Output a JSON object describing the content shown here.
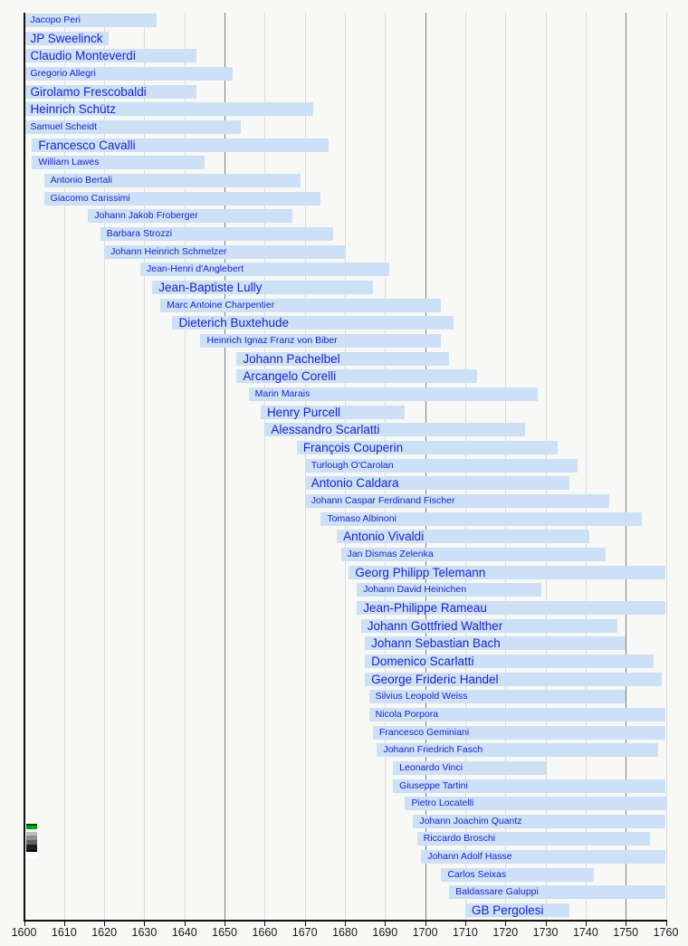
{
  "page": {
    "background": "#f8f8f6"
  },
  "chart_data": {
    "type": "bar",
    "variant": "horizontal-timeline-of-lifespans",
    "title": "",
    "subtitle": "",
    "legend": [],
    "grid": "on",
    "x_axis": {
      "min": 1600,
      "max": 1760,
      "tick_step": 10,
      "tick_labels": [
        "1600",
        "1610",
        "1620",
        "1630",
        "1640",
        "1650",
        "1660",
        "1670",
        "1680",
        "1690",
        "1700",
        "1710",
        "1720",
        "1730",
        "1740",
        "1750",
        "1760"
      ],
      "major_gridline_every": 50
    },
    "colors": {
      "bar_fill": "#cce0f6",
      "bar_label": "#2121cd",
      "grid_minor": "#dcdcdc",
      "grid_major": "#7d7d7d",
      "axis": "#101010",
      "background": "#f8f8f6"
    },
    "composers": [
      {
        "name": "Jacopo Peri",
        "from": 1600,
        "to": 1633,
        "label_size": "small"
      },
      {
        "name": "JP Sweelinck",
        "from": 1600,
        "to": 1621,
        "label_size": "large"
      },
      {
        "name": "Claudio Monteverdi",
        "from": 1600,
        "to": 1643,
        "label_size": "large"
      },
      {
        "name": "Gregorio Allegri",
        "from": 1600,
        "to": 1652,
        "label_size": "small"
      },
      {
        "name": "Girolamo Frescobaldi",
        "from": 1600,
        "to": 1643,
        "label_size": "large"
      },
      {
        "name": "Heinrich Schütz",
        "from": 1600,
        "to": 1672,
        "label_size": "large"
      },
      {
        "name": "Samuel Scheidt",
        "from": 1600,
        "to": 1654,
        "label_size": "small"
      },
      {
        "name": "Francesco Cavalli",
        "from": 1602,
        "to": 1676,
        "label_size": "large"
      },
      {
        "name": "William Lawes",
        "from": 1602,
        "to": 1645,
        "label_size": "small"
      },
      {
        "name": "Antonio Bertali",
        "from": 1605,
        "to": 1669,
        "label_size": "small"
      },
      {
        "name": "Giacomo Carissimi",
        "from": 1605,
        "to": 1674,
        "label_size": "small"
      },
      {
        "name": "Johann Jakob Froberger",
        "from": 1616,
        "to": 1667,
        "label_size": "small"
      },
      {
        "name": "Barbara Strozzi",
        "from": 1619,
        "to": 1677,
        "label_size": "small"
      },
      {
        "name": "Johann Heinrich Schmelzer",
        "from": 1620,
        "to": 1680,
        "label_size": "small"
      },
      {
        "name": "Jean-Henri d'Anglebert",
        "from": 1629,
        "to": 1691,
        "label_size": "small"
      },
      {
        "name": "Jean-Baptiste Lully",
        "from": 1632,
        "to": 1687,
        "label_size": "large"
      },
      {
        "name": "Marc Antoine Charpentier",
        "from": 1634,
        "to": 1704,
        "label_size": "small"
      },
      {
        "name": "Dieterich Buxtehude",
        "from": 1637,
        "to": 1707,
        "label_size": "large"
      },
      {
        "name": "Heinrich Ignaz Franz von Biber",
        "from": 1644,
        "to": 1704,
        "label_size": "small"
      },
      {
        "name": "Johann Pachelbel",
        "from": 1653,
        "to": 1706,
        "label_size": "large"
      },
      {
        "name": "Arcangelo Corelli",
        "from": 1653,
        "to": 1713,
        "label_size": "large"
      },
      {
        "name": "Marin Marais",
        "from": 1656,
        "to": 1728,
        "label_size": "small"
      },
      {
        "name": "Henry Purcell",
        "from": 1659,
        "to": 1695,
        "label_size": "large"
      },
      {
        "name": "Alessandro Scarlatti",
        "from": 1660,
        "to": 1725,
        "label_size": "large"
      },
      {
        "name": "François Couperin",
        "from": 1668,
        "to": 1733,
        "label_size": "large"
      },
      {
        "name": "Turlough O'Carolan",
        "from": 1670,
        "to": 1738,
        "label_size": "small"
      },
      {
        "name": "Antonio Caldara",
        "from": 1670,
        "to": 1736,
        "label_size": "large"
      },
      {
        "name": "Johann Caspar Ferdinand Fischer",
        "from": 1670,
        "to": 1746,
        "label_size": "small"
      },
      {
        "name": "Tomaso Albinoni",
        "from": 1674,
        "to": 1754,
        "label_size": "small"
      },
      {
        "name": "Antonio Vivaldi",
        "from": 1678,
        "to": 1741,
        "label_size": "large"
      },
      {
        "name": "Jan Dismas Zelenka",
        "from": 1679,
        "to": 1745,
        "label_size": "small"
      },
      {
        "name": "Georg Philipp Telemann",
        "from": 1681,
        "to": 1760,
        "label_size": "large"
      },
      {
        "name": "Johann David Heinichen",
        "from": 1683,
        "to": 1729,
        "label_size": "small"
      },
      {
        "name": "Jean-Philippe Rameau",
        "from": 1683,
        "to": 1760,
        "label_size": "large"
      },
      {
        "name": "Johann Gottfried Walther",
        "from": 1684,
        "to": 1748,
        "label_size": "large"
      },
      {
        "name": "Johann Sebastian Bach",
        "from": 1685,
        "to": 1750,
        "label_size": "large"
      },
      {
        "name": "Domenico Scarlatti",
        "from": 1685,
        "to": 1757,
        "label_size": "large"
      },
      {
        "name": "George Frideric Handel",
        "from": 1685,
        "to": 1759,
        "label_size": "large"
      },
      {
        "name": "Silvius Leopold Weiss",
        "from": 1686,
        "to": 1750,
        "label_size": "small"
      },
      {
        "name": "Nicola Porpora",
        "from": 1686,
        "to": 1760,
        "label_size": "small"
      },
      {
        "name": "Francesco Geminiani",
        "from": 1687,
        "to": 1760,
        "label_size": "small"
      },
      {
        "name": "Johann Friedrich Fasch",
        "from": 1688,
        "to": 1758,
        "label_size": "small"
      },
      {
        "name": "Leonardo Vinci",
        "from": 1692,
        "to": 1730,
        "label_size": "small"
      },
      {
        "name": "Giuseppe Tartini",
        "from": 1692,
        "to": 1760,
        "label_size": "small"
      },
      {
        "name": "Pietro Locatelli",
        "from": 1695,
        "to": 1760,
        "label_size": "small"
      },
      {
        "name": "Johann Joachim Quantz",
        "from": 1697,
        "to": 1760,
        "label_size": "small"
      },
      {
        "name": "Riccardo Broschi",
        "from": 1698,
        "to": 1756,
        "label_size": "small"
      },
      {
        "name": "Johann Adolf Hasse",
        "from": 1699,
        "to": 1760,
        "label_size": "small"
      },
      {
        "name": "Carlos Seixas",
        "from": 1704,
        "to": 1742,
        "label_size": "small"
      },
      {
        "name": "Baldassare Galuppi",
        "from": 1706,
        "to": 1760,
        "label_size": "small"
      },
      {
        "name": "GB Pergolesi",
        "from": 1710,
        "to": 1736,
        "label_size": "large"
      }
    ]
  },
  "legend_artifact": {
    "segments": [
      {
        "color": "#0b3d0b",
        "h": 2
      },
      {
        "color": "#00a316",
        "h": 4
      },
      {
        "color": "#eef2ee",
        "h": 3
      },
      {
        "color": "#bdbdbd",
        "h": 4
      },
      {
        "color": "#8f8f8f",
        "h": 5
      },
      {
        "color": "#606060",
        "h": 5
      },
      {
        "color": "#1e1e1e",
        "h": 6
      },
      {
        "color": "#000000",
        "h": 2
      },
      {
        "color": "#ffffff",
        "h": 7
      }
    ]
  }
}
